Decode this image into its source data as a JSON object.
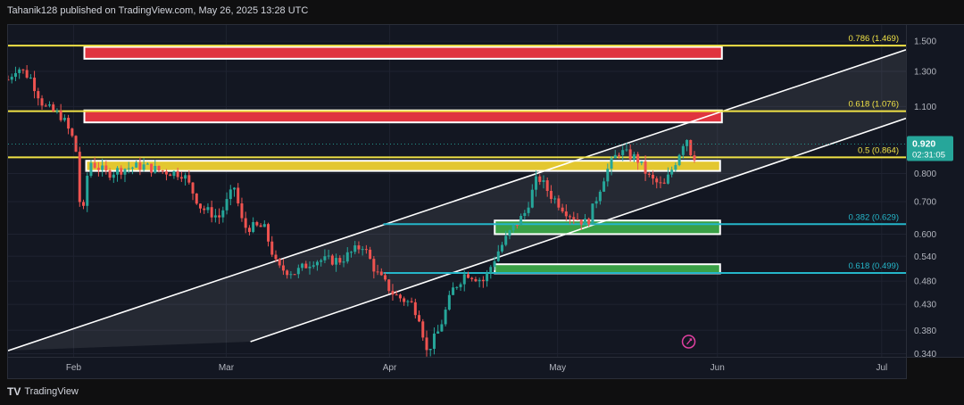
{
  "header": {
    "published_by": "Tahanik128 published on TradingView.com, May 26, 2025 13:28 UTC"
  },
  "footer": {
    "brand_logo": "TV",
    "brand_text": "TradingView"
  },
  "price_axis": {
    "ticks": [
      "1.500",
      "1.300",
      "1.100",
      "0.920",
      "0.800",
      "0.700",
      "0.600",
      "0.540",
      "0.480",
      "0.430",
      "0.380",
      "0.340"
    ],
    "current_price": "0.920",
    "countdown": "02:31:05",
    "current_price_color": "#26a69a"
  },
  "time_axis": {
    "ticks": [
      "Feb",
      "Mar",
      "Apr",
      "May",
      "Jun",
      "Jul"
    ]
  },
  "colors": {
    "up": "#26a69a",
    "down": "#ef5350",
    "fib_yellow": "#f0e246",
    "fib_cyan": "#25b6c9",
    "red_zone": "#e0343f",
    "yellow_zone": "#e3c730",
    "green_zone": "#3aa046"
  },
  "chart_data": {
    "type": "candlestick",
    "y_scale": "log",
    "ylim": [
      0.335,
      1.62
    ],
    "fib_levels": [
      {
        "label": "0.786 (1.469)",
        "price": 1.469,
        "color": "yellow"
      },
      {
        "label": "0.618 (1.076)",
        "price": 1.076,
        "color": "yellow"
      },
      {
        "label": "0.5 (0.864)",
        "price": 0.864,
        "color": "yellow"
      },
      {
        "label": "0.382 (0.629)",
        "price": 0.629,
        "color": "cyan"
      },
      {
        "label": "0.618 (0.499)",
        "price": 0.499,
        "color": "cyan"
      }
    ],
    "zones": [
      {
        "color": "red",
        "price_from": 1.38,
        "price_to": 1.46
      },
      {
        "color": "red",
        "price_from": 1.02,
        "price_to": 1.08
      },
      {
        "color": "yellow",
        "price_from": 0.81,
        "price_to": 0.85
      },
      {
        "color": "green",
        "price_from": 0.6,
        "price_to": 0.64
      },
      {
        "color": "green",
        "price_from": 0.498,
        "price_to": 0.52
      }
    ],
    "channel": {
      "lower_from": [
        0.27,
        0.36
      ],
      "lower_to": [
        1.0,
        1.04
      ],
      "upper_from": [
        0.0,
        0.345
      ],
      "upper_to": [
        1.0,
        1.44
      ]
    },
    "price_path": [
      [
        0.0,
        1.25
      ],
      [
        0.01,
        1.33
      ],
      [
        0.025,
        1.26
      ],
      [
        0.04,
        1.1
      ],
      [
        0.06,
        1.05
      ],
      [
        0.075,
        0.92
      ],
      [
        0.082,
        0.62
      ],
      [
        0.09,
        0.85
      ],
      [
        0.11,
        0.8
      ],
      [
        0.13,
        0.82
      ],
      [
        0.15,
        0.83
      ],
      [
        0.17,
        0.81
      ],
      [
        0.195,
        0.8
      ],
      [
        0.215,
        0.68
      ],
      [
        0.235,
        0.65
      ],
      [
        0.252,
        0.75
      ],
      [
        0.262,
        0.62
      ],
      [
        0.285,
        0.62
      ],
      [
        0.3,
        0.51
      ],
      [
        0.32,
        0.5
      ],
      [
        0.34,
        0.53
      ],
      [
        0.37,
        0.53
      ],
      [
        0.395,
        0.57
      ],
      [
        0.41,
        0.5
      ],
      [
        0.43,
        0.45
      ],
      [
        0.45,
        0.43
      ],
      [
        0.46,
        0.4
      ],
      [
        0.465,
        0.34
      ],
      [
        0.48,
        0.38
      ],
      [
        0.495,
        0.46
      ],
      [
        0.51,
        0.5
      ],
      [
        0.53,
        0.48
      ],
      [
        0.545,
        0.55
      ],
      [
        0.56,
        0.61
      ],
      [
        0.575,
        0.66
      ],
      [
        0.59,
        0.79
      ],
      [
        0.605,
        0.72
      ],
      [
        0.625,
        0.66
      ],
      [
        0.645,
        0.63
      ],
      [
        0.665,
        0.8
      ],
      [
        0.68,
        0.89
      ],
      [
        0.7,
        0.86
      ],
      [
        0.715,
        0.78
      ],
      [
        0.73,
        0.75
      ],
      [
        0.745,
        0.86
      ],
      [
        0.755,
        0.96
      ],
      [
        0.763,
        0.85
      ],
      [
        0.768,
        0.92
      ]
    ],
    "last_price": 0.92
  }
}
